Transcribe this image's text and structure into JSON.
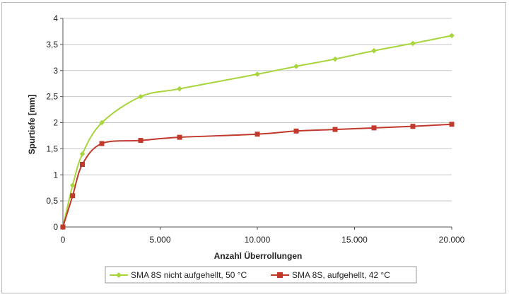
{
  "chart_data": {
    "type": "line",
    "xlabel": "Anzahl Überrollungen",
    "ylabel": "Spurtiefe [mm]",
    "xlim": [
      0,
      20000
    ],
    "ylim": [
      0,
      4
    ],
    "x_ticks": [
      0,
      5000,
      10000,
      15000,
      20000
    ],
    "x_tick_labels": [
      "0",
      "5.000",
      "10.000",
      "15.000",
      "20.000"
    ],
    "y_ticks": [
      0,
      0.5,
      1,
      1.5,
      2,
      2.5,
      3,
      3.5,
      4
    ],
    "y_tick_labels": [
      "0",
      "0,5",
      "1",
      "1,5",
      "2",
      "2,5",
      "3",
      "3,5",
      "4"
    ],
    "grid": "horizontal",
    "legend_position": "bottom",
    "series": [
      {
        "name": "SMA 8S  nicht aufgehellt, 50 °C",
        "color": "#a8d43c",
        "marker": "diamond",
        "x": [
          0,
          500,
          1000,
          2000,
          4000,
          6000,
          10000,
          12000,
          14000,
          16000,
          18000,
          20000
        ],
        "y": [
          0,
          0.8,
          1.4,
          2.0,
          2.5,
          2.65,
          2.93,
          3.08,
          3.22,
          3.38,
          3.52,
          3.67
        ]
      },
      {
        "name": "SMA 8S, aufgehellt, 42 °C",
        "color": "#c0392b",
        "marker": "square",
        "x": [
          0,
          500,
          1000,
          2000,
          4000,
          6000,
          10000,
          12000,
          14000,
          16000,
          18000,
          20000
        ],
        "y": [
          0,
          0.6,
          1.2,
          1.6,
          1.66,
          1.72,
          1.78,
          1.84,
          1.87,
          1.9,
          1.93,
          1.97
        ]
      }
    ]
  }
}
